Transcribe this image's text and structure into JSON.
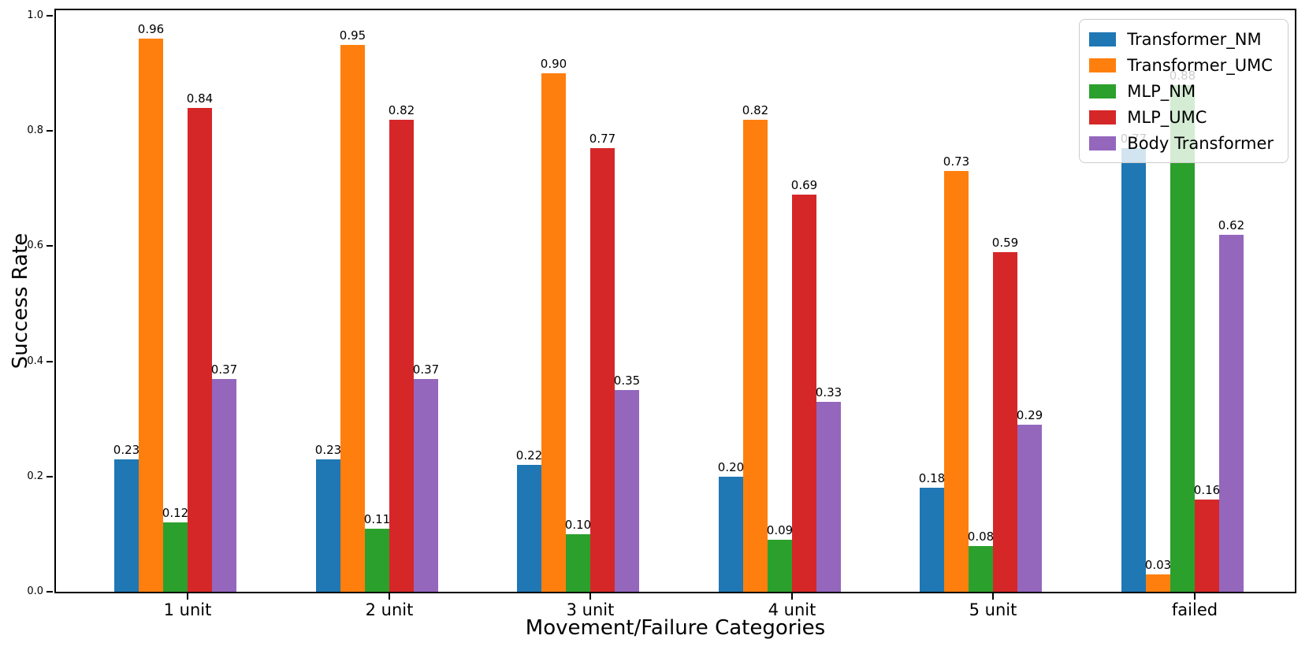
{
  "chart_data": {
    "type": "bar",
    "title": "",
    "xlabel": "Movement/Failure Categories",
    "ylabel": "Success Rate",
    "categories": [
      "1 unit",
      "2 unit",
      "3 unit",
      "4 unit",
      "5 unit",
      "failed"
    ],
    "series": [
      {
        "name": "Transformer_NM",
        "color": "#1f77b4",
        "values": [
          0.23,
          0.23,
          0.22,
          0.2,
          0.18,
          0.77
        ]
      },
      {
        "name": "Transformer_UMC",
        "color": "#ff7f0e",
        "values": [
          0.96,
          0.95,
          0.9,
          0.82,
          0.73,
          0.03
        ]
      },
      {
        "name": "MLP_NM",
        "color": "#2ca02c",
        "values": [
          0.12,
          0.11,
          0.1,
          0.09,
          0.08,
          0.88
        ]
      },
      {
        "name": "MLP_UMC",
        "color": "#d62728",
        "values": [
          0.84,
          0.82,
          0.77,
          0.69,
          0.59,
          0.16
        ]
      },
      {
        "name": "Body Transformer",
        "color": "#9467bd",
        "values": [
          0.37,
          0.37,
          0.35,
          0.33,
          0.29,
          0.62
        ]
      }
    ],
    "ylim": [
      0.0,
      1.0
    ],
    "yticks": [
      0.0,
      0.2,
      0.4,
      0.6,
      0.8,
      1.0
    ],
    "ytick_labels": [
      "0.0",
      "0.2",
      "0.4",
      "0.6",
      "0.8",
      "1.0"
    ],
    "bar_value_labels": true,
    "value_label_format_decimals": 2,
    "legend_position": "upper right",
    "grid": false,
    "axis_color": "#000000",
    "legend_border_color": "#cccccc"
  }
}
